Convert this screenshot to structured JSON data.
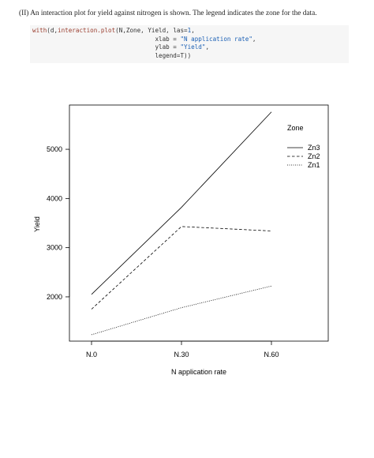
{
  "document": {
    "intro": "(II) An interaction plot for yield against nitrogen is shown. The legend indicates the zone for the data.",
    "code": {
      "line1_fn": "with",
      "line1_a": "(d,",
      "line1_fn2": "interaction.plot",
      "line1_b": "(N,Zone, Yield, las=",
      "line1_num": "1",
      "line1_c": ",",
      "line2_a": "                                  xlab = ",
      "line2_str": "\"N application rate\"",
      "line2_b": ",",
      "line3_a": "                                  ylab = ",
      "line3_str": "\"Yield\"",
      "line3_b": ",",
      "line4": "                                  legend=T))"
    }
  },
  "chart_data": {
    "type": "line",
    "categories": [
      "N.0",
      "N.30",
      "N.60"
    ],
    "xlabel": "N application rate",
    "ylabel": "Yield",
    "ylim": [
      1100,
      5900
    ],
    "yticks": [
      2000,
      3000,
      4000,
      5000
    ],
    "legend_title": "Zone",
    "legend_position": "top-right",
    "series": [
      {
        "name": "Zn3",
        "values": [
          2050,
          3820,
          5760
        ],
        "dash": "solid"
      },
      {
        "name": "Zn2",
        "values": [
          1750,
          3430,
          3340
        ],
        "dash": "dashed"
      },
      {
        "name": "Zn1",
        "values": [
          1230,
          1780,
          2220
        ],
        "dash": "dotted"
      }
    ]
  }
}
